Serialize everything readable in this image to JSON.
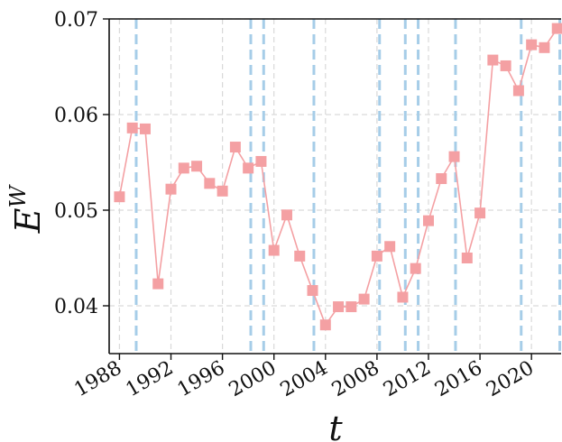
{
  "chart_data": {
    "type": "line",
    "xlabel": "t",
    "ylabel_base": "E",
    "ylabel_superscript": "W",
    "xlim": [
      1987.2,
      2022.3
    ],
    "ylim": [
      0.035,
      0.07
    ],
    "xticks": [
      {
        "value": 1988,
        "label": "1988"
      },
      {
        "value": 1992,
        "label": "1992"
      },
      {
        "value": 1996,
        "label": "1996"
      },
      {
        "value": 2000,
        "label": "2000"
      },
      {
        "value": 2004,
        "label": "2004"
      },
      {
        "value": 2008,
        "label": "2008"
      },
      {
        "value": 2012,
        "label": "2012"
      },
      {
        "value": 2016,
        "label": "2016"
      },
      {
        "value": 2020,
        "label": "2020"
      }
    ],
    "yticks": [
      {
        "value": 0.04,
        "label": "0.04"
      },
      {
        "value": 0.05,
        "label": "0.05"
      },
      {
        "value": 0.06,
        "label": "0.06"
      },
      {
        "value": 0.07,
        "label": "0.07"
      }
    ],
    "grid": true,
    "marker": "square",
    "series": [
      {
        "color": "#f4a0a3",
        "x": [
          1988,
          1989,
          1990,
          1991,
          1992,
          1993,
          1994,
          1995,
          1996,
          1997,
          1998,
          1999,
          2000,
          2001,
          2002,
          2003,
          2004,
          2005,
          2006,
          2007,
          2008,
          2009,
          2010,
          2011,
          2012,
          2013,
          2014,
          2015,
          2016,
          2017,
          2018,
          2019,
          2020,
          2021,
          2022
        ],
        "y": [
          0.0514,
          0.0586,
          0.0585,
          0.0423,
          0.0522,
          0.0544,
          0.0546,
          0.0528,
          0.052,
          0.0566,
          0.0544,
          0.0551,
          0.0458,
          0.0495,
          0.0452,
          0.0416,
          0.038,
          0.0399,
          0.0399,
          0.0407,
          0.0452,
          0.0462,
          0.0409,
          0.0439,
          0.0489,
          0.0533,
          0.0556,
          0.045,
          0.0497,
          0.0657,
          0.0651,
          0.0625,
          0.0673,
          0.067,
          0.069
        ]
      }
    ],
    "vertical_lines": {
      "color": "#a6cde8",
      "x": [
        1989.3,
        1998.2,
        1999.2,
        2003.1,
        2008.2,
        2010.2,
        2011.2,
        2014.1,
        2019.2,
        2022.2
      ]
    }
  }
}
